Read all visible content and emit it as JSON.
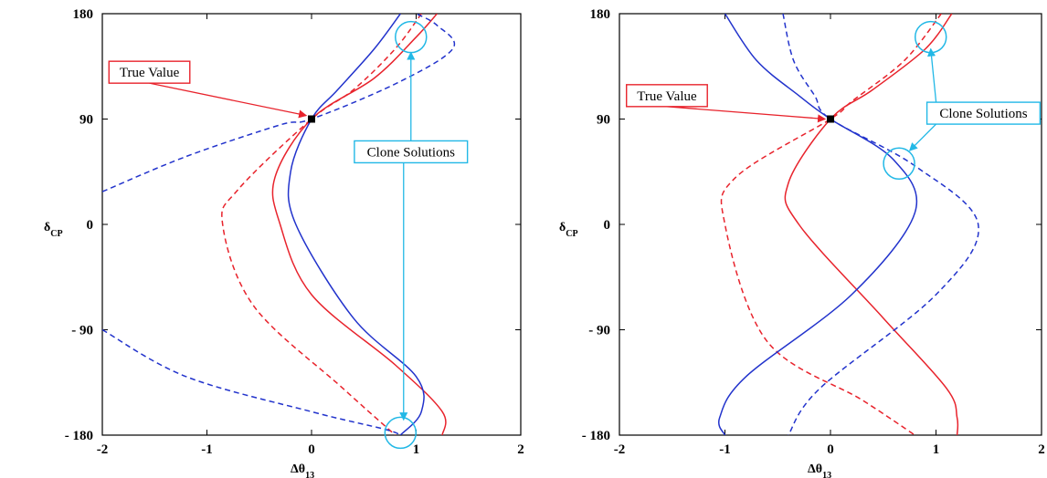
{
  "chart_data": [
    {
      "type": "line",
      "xlabel": "Δθ",
      "xlabel_sub": "13",
      "ylabel": "δ",
      "ylabel_sub": "CP",
      "xlim": [
        -2,
        2
      ],
      "ylim": [
        -180,
        180
      ],
      "xticks": [
        -2,
        -1,
        0,
        1,
        2
      ],
      "yticks": [
        -180,
        -90,
        0,
        90,
        180
      ],
      "xtick_labels": [
        "-2",
        "-1",
        "0",
        "1",
        "2"
      ],
      "ytick_labels": [
        "- 180",
        "- 90",
        "0",
        "90",
        "180"
      ],
      "grid": false,
      "colors": {
        "red": "#e8232c",
        "blue": "#2233cc",
        "cyan": "#22b8e6"
      },
      "true_point": {
        "x": 0,
        "y": 90
      },
      "series": [
        {
          "color": "red",
          "dashed": false,
          "points": [
            [
              1.2,
              180
            ],
            [
              1.0,
              160
            ],
            [
              0.6,
              125
            ],
            [
              0.0,
              90
            ],
            [
              -0.35,
              40
            ],
            [
              -0.3,
              0
            ],
            [
              0.0,
              -60
            ],
            [
              0.8,
              -120
            ],
            [
              1.25,
              -160
            ],
            [
              1.25,
              -180
            ]
          ]
        },
        {
          "color": "red",
          "dashed": true,
          "points": [
            [
              1.05,
              180
            ],
            [
              0.8,
              150
            ],
            [
              0.4,
              115
            ],
            [
              0.0,
              90
            ],
            [
              -0.7,
              30
            ],
            [
              -0.85,
              0
            ],
            [
              -0.55,
              -70
            ],
            [
              0.3,
              -140
            ],
            [
              0.8,
              -180
            ]
          ]
        },
        {
          "color": "blue",
          "dashed": false,
          "points": [
            [
              0.85,
              180
            ],
            [
              0.6,
              150
            ],
            [
              0.25,
              115
            ],
            [
              0.0,
              90
            ],
            [
              -0.2,
              45
            ],
            [
              -0.15,
              0
            ],
            [
              0.4,
              -80
            ],
            [
              1.0,
              -130
            ],
            [
              1.05,
              -160
            ],
            [
              0.85,
              -180
            ]
          ]
        },
        {
          "color": "blue",
          "dashed": true,
          "points": [
            [
              -2,
              28
            ],
            [
              -1.2,
              58
            ],
            [
              -0.3,
              85
            ],
            [
              0.0,
              90
            ],
            [
              0.8,
              120
            ],
            [
              1.35,
              150
            ],
            [
              1.2,
              170
            ],
            [
              1.0,
              180
            ]
          ]
        },
        {
          "color": "blue",
          "dashed": true,
          "points": [
            [
              -2,
              -90
            ],
            [
              -1.2,
              -130
            ],
            [
              0.0,
              -160
            ],
            [
              0.7,
              -175
            ],
            [
              0.85,
              -180
            ]
          ]
        }
      ],
      "annotations": [
        {
          "text": "True Value",
          "color": "red",
          "pos": [
            -1.55,
            130
          ],
          "target": [
            -0.05,
            93
          ]
        },
        {
          "text": "Clone Solutions",
          "color": "cyan",
          "pos": [
            0.95,
            62
          ],
          "targets": [
            [
              0.95,
              147
            ],
            [
              0.88,
              -167
            ]
          ]
        }
      ],
      "circles": [
        {
          "x": 0.95,
          "y": 160
        },
        {
          "x": 0.85,
          "y": -178
        }
      ]
    },
    {
      "type": "line",
      "xlabel": "Δθ",
      "xlabel_sub": "13",
      "ylabel": "δ",
      "ylabel_sub": "CP",
      "xlim": [
        -2,
        2
      ],
      "ylim": [
        -180,
        180
      ],
      "xticks": [
        -2,
        -1,
        0,
        1,
        2
      ],
      "yticks": [
        -180,
        -90,
        0,
        90,
        180
      ],
      "xtick_labels": [
        "-2",
        "-1",
        "0",
        "1",
        "2"
      ],
      "ytick_labels": [
        "- 180",
        "- 90",
        "0",
        "90",
        "180"
      ],
      "grid": false,
      "colors": {
        "red": "#e8232c",
        "blue": "#2233cc",
        "cyan": "#22b8e6"
      },
      "true_point": {
        "x": 0,
        "y": 90
      },
      "series": [
        {
          "color": "red",
          "dashed": false,
          "points": [
            [
              1.15,
              180
            ],
            [
              0.9,
              150
            ],
            [
              0.4,
              115
            ],
            [
              0.0,
              90
            ],
            [
              -0.4,
              35
            ],
            [
              -0.3,
              0
            ],
            [
              0.5,
              -80
            ],
            [
              1.1,
              -140
            ],
            [
              1.2,
              -165
            ],
            [
              1.2,
              -180
            ]
          ]
        },
        {
          "color": "red",
          "dashed": true,
          "points": [
            [
              1.05,
              180
            ],
            [
              0.7,
              140
            ],
            [
              0.2,
              105
            ],
            [
              0.0,
              90
            ],
            [
              -0.9,
              40
            ],
            [
              -1.0,
              0
            ],
            [
              -0.6,
              -100
            ],
            [
              0.3,
              -150
            ],
            [
              0.8,
              -180
            ]
          ]
        },
        {
          "color": "blue",
          "dashed": false,
          "points": [
            [
              -1.0,
              180
            ],
            [
              -0.7,
              140
            ],
            [
              -0.3,
              110
            ],
            [
              0.0,
              90
            ],
            [
              0.6,
              55
            ],
            [
              0.8,
              10
            ],
            [
              0.2,
              -60
            ],
            [
              -0.8,
              -130
            ],
            [
              -1.05,
              -165
            ],
            [
              -1.0,
              -180
            ]
          ]
        },
        {
          "color": "blue",
          "dashed": true,
          "points": [
            [
              -0.45,
              180
            ],
            [
              -0.35,
              140
            ],
            [
              -0.15,
              110
            ],
            [
              0.0,
              90
            ],
            [
              0.8,
              50
            ],
            [
              1.4,
              0
            ],
            [
              1.0,
              -60
            ],
            [
              -0.1,
              -140
            ],
            [
              -0.4,
              -180
            ]
          ]
        }
      ],
      "annotations": [
        {
          "text": "True Value",
          "color": "red",
          "pos": [
            -1.55,
            110
          ],
          "target": [
            -0.05,
            90
          ]
        },
        {
          "text": "Clone Solutions",
          "color": "cyan",
          "pos": [
            1.45,
            95
          ],
          "targets": [
            [
              0.95,
              150
            ],
            [
              0.75,
              63
            ]
          ]
        }
      ],
      "circles": [
        {
          "x": 0.95,
          "y": 160
        },
        {
          "x": 0.65,
          "y": 52
        }
      ]
    }
  ]
}
